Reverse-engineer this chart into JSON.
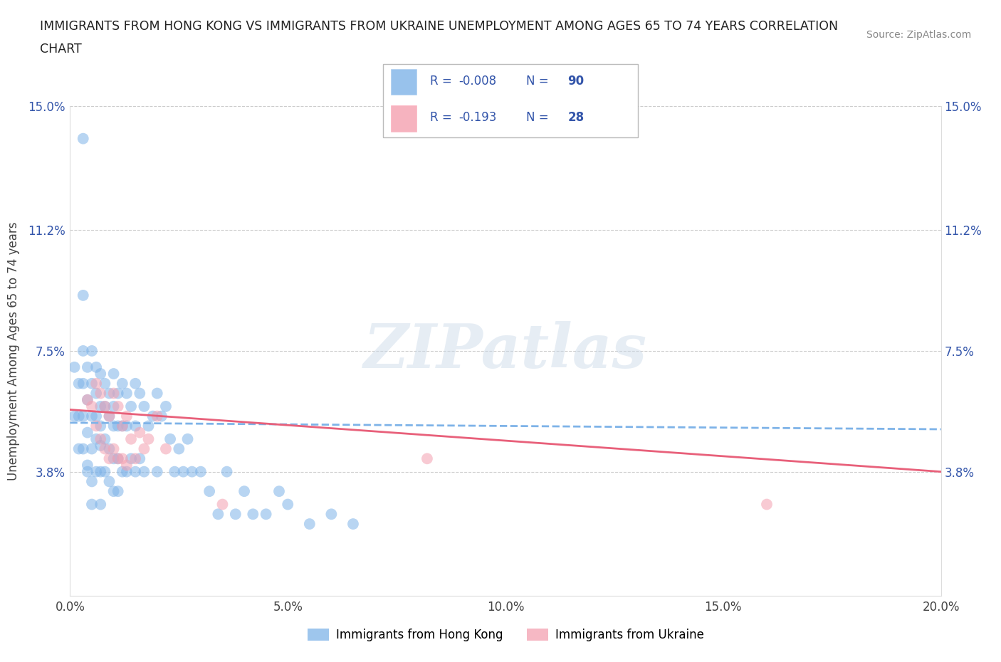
{
  "title_line1": "IMMIGRANTS FROM HONG KONG VS IMMIGRANTS FROM UKRAINE UNEMPLOYMENT AMONG AGES 65 TO 74 YEARS CORRELATION",
  "title_line2": "CHART",
  "source_text": "Source: ZipAtlas.com",
  "ylabel": "Unemployment Among Ages 65 to 74 years",
  "xlim": [
    0.0,
    0.2
  ],
  "ylim": [
    0.0,
    0.15
  ],
  "xticks": [
    0.0,
    0.05,
    0.1,
    0.15,
    0.2
  ],
  "xticklabels": [
    "0.0%",
    "5.0%",
    "10.0%",
    "15.0%",
    "20.0%"
  ],
  "yticks": [
    0.0,
    0.038,
    0.075,
    0.112,
    0.15
  ],
  "yticklabels_left": [
    "",
    "3.8%",
    "7.5%",
    "11.2%",
    "15.0%"
  ],
  "yticklabels_right": [
    "",
    "3.8%",
    "7.5%",
    "11.2%",
    "15.0%"
  ],
  "hk_color": "#7EB3E8",
  "uk_color": "#F4A0B0",
  "hk_line_color": "#7EB3E8",
  "uk_line_color": "#E8607A",
  "hk_R": -0.008,
  "hk_N": 90,
  "uk_R": -0.193,
  "uk_N": 28,
  "watermark": "ZIPatlas",
  "legend_label_hk": "Immigrants from Hong Kong",
  "legend_label_uk": "Immigrants from Ukraine",
  "legend_text_color": "#3355AA",
  "hk_trend_start_y": 0.053,
  "hk_trend_end_y": 0.051,
  "uk_trend_start_y": 0.057,
  "uk_trend_end_y": 0.038,
  "hk_x": [
    0.001,
    0.001,
    0.002,
    0.002,
    0.002,
    0.003,
    0.003,
    0.003,
    0.003,
    0.004,
    0.004,
    0.004,
    0.004,
    0.005,
    0.005,
    0.005,
    0.005,
    0.005,
    0.006,
    0.006,
    0.006,
    0.006,
    0.006,
    0.007,
    0.007,
    0.007,
    0.007,
    0.007,
    0.007,
    0.008,
    0.008,
    0.008,
    0.008,
    0.009,
    0.009,
    0.009,
    0.009,
    0.01,
    0.01,
    0.01,
    0.01,
    0.01,
    0.011,
    0.011,
    0.011,
    0.011,
    0.012,
    0.012,
    0.012,
    0.013,
    0.013,
    0.013,
    0.014,
    0.014,
    0.015,
    0.015,
    0.015,
    0.016,
    0.016,
    0.017,
    0.017,
    0.018,
    0.019,
    0.02,
    0.02,
    0.021,
    0.022,
    0.023,
    0.024,
    0.025,
    0.026,
    0.027,
    0.028,
    0.03,
    0.032,
    0.034,
    0.036,
    0.038,
    0.04,
    0.042,
    0.045,
    0.048,
    0.05,
    0.055,
    0.06,
    0.065,
    0.003,
    0.003,
    0.004,
    0.005
  ],
  "hk_y": [
    0.055,
    0.07,
    0.065,
    0.055,
    0.045,
    0.075,
    0.065,
    0.055,
    0.045,
    0.07,
    0.06,
    0.05,
    0.04,
    0.075,
    0.065,
    0.055,
    0.045,
    0.035,
    0.07,
    0.062,
    0.055,
    0.048,
    0.038,
    0.068,
    0.058,
    0.052,
    0.046,
    0.038,
    0.028,
    0.065,
    0.058,
    0.048,
    0.038,
    0.062,
    0.055,
    0.045,
    0.035,
    0.068,
    0.058,
    0.052,
    0.042,
    0.032,
    0.062,
    0.052,
    0.042,
    0.032,
    0.065,
    0.052,
    0.038,
    0.062,
    0.052,
    0.038,
    0.058,
    0.042,
    0.065,
    0.052,
    0.038,
    0.062,
    0.042,
    0.058,
    0.038,
    0.052,
    0.055,
    0.062,
    0.038,
    0.055,
    0.058,
    0.048,
    0.038,
    0.045,
    0.038,
    0.048,
    0.038,
    0.038,
    0.032,
    0.025,
    0.038,
    0.025,
    0.032,
    0.025,
    0.025,
    0.032,
    0.028,
    0.022,
    0.025,
    0.022,
    0.14,
    0.092,
    0.038,
    0.028
  ],
  "uk_x": [
    0.004,
    0.005,
    0.006,
    0.006,
    0.007,
    0.007,
    0.008,
    0.008,
    0.009,
    0.009,
    0.01,
    0.01,
    0.011,
    0.011,
    0.012,
    0.012,
    0.013,
    0.013,
    0.014,
    0.015,
    0.016,
    0.017,
    0.018,
    0.02,
    0.022,
    0.035,
    0.082,
    0.16
  ],
  "uk_y": [
    0.06,
    0.058,
    0.065,
    0.052,
    0.062,
    0.048,
    0.058,
    0.045,
    0.055,
    0.042,
    0.062,
    0.045,
    0.058,
    0.042,
    0.052,
    0.042,
    0.055,
    0.04,
    0.048,
    0.042,
    0.05,
    0.045,
    0.048,
    0.055,
    0.045,
    0.028,
    0.042,
    0.028
  ]
}
